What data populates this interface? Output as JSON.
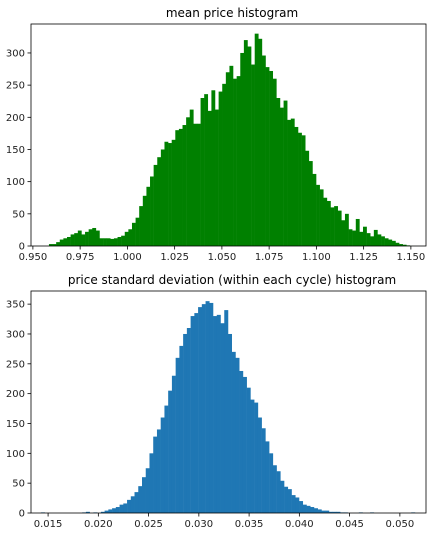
{
  "chart_data": [
    {
      "type": "bar",
      "title": "mean price histogram",
      "xlabel": "",
      "ylabel": "",
      "xlim": [
        0.949,
        1.158
      ],
      "ylim": [
        0,
        345
      ],
      "bar_color": "#008000",
      "grid": false,
      "x_ticks": [
        "0.950",
        "0.975",
        "1.000",
        "1.025",
        "1.050",
        "1.075",
        "1.100",
        "1.125",
        "1.150"
      ],
      "y_ticks": [
        "0",
        "50",
        "100",
        "150",
        "200",
        "250",
        "300"
      ],
      "bin_start": 0.9585,
      "bin_width": 0.00191,
      "counts": [
        3,
        3,
        6,
        10,
        12,
        14,
        18,
        20,
        24,
        18,
        22,
        26,
        28,
        24,
        12,
        12,
        12,
        11,
        12,
        14,
        16,
        22,
        26,
        36,
        44,
        62,
        78,
        92,
        108,
        126,
        138,
        150,
        162,
        160,
        165,
        180,
        182,
        188,
        200,
        212,
        190,
        190,
        230,
        236,
        210,
        242,
        212,
        240,
        252,
        270,
        280,
        260,
        264,
        300,
        320,
        310,
        282,
        330,
        322,
        296,
        278,
        272,
        260,
        230,
        215,
        226,
        196,
        198,
        185,
        176,
        172,
        148,
        132,
        112,
        95,
        88,
        75,
        70,
        60,
        62,
        55,
        40,
        50,
        26,
        24,
        42,
        22,
        30,
        20,
        15,
        25,
        18,
        15,
        12,
        10,
        8,
        5,
        3,
        2,
        1
      ]
    },
    {
      "type": "bar",
      "title": "price standard deviation (within each cycle) histogram",
      "xlabel": "",
      "ylabel": "",
      "xlim": [
        0.0133,
        0.0526
      ],
      "ylim": [
        0,
        372
      ],
      "bar_color": "#1f77b4",
      "grid": false,
      "x_ticks": [
        "0.015",
        "0.020",
        "0.025",
        "0.030",
        "0.035",
        "0.040",
        "0.045",
        "0.050"
      ],
      "y_ticks": [
        "0",
        "50",
        "100",
        "150",
        "200",
        "250",
        "300",
        "350"
      ],
      "bin_start": 0.0143,
      "bin_width": 0.000372,
      "counts": [
        1,
        0,
        0,
        0,
        0,
        0,
        0,
        0,
        0,
        0,
        0,
        1,
        2,
        0,
        1,
        0,
        2,
        4,
        6,
        8,
        10,
        14,
        16,
        22,
        28,
        35,
        45,
        60,
        75,
        100,
        128,
        140,
        160,
        180,
        205,
        230,
        260,
        280,
        300,
        310,
        330,
        335,
        345,
        350,
        355,
        352,
        330,
        332,
        318,
        340,
        300,
        270,
        260,
        238,
        228,
        210,
        190,
        185,
        160,
        142,
        120,
        100,
        80,
        70,
        54,
        44,
        40,
        30,
        26,
        20,
        14,
        12,
        10,
        8,
        6,
        4,
        4,
        2,
        2,
        2,
        1,
        1,
        0,
        0,
        0,
        1,
        0,
        0,
        1,
        0,
        0,
        0,
        0,
        0,
        0,
        0,
        0,
        0,
        0,
        1
      ]
    }
  ]
}
